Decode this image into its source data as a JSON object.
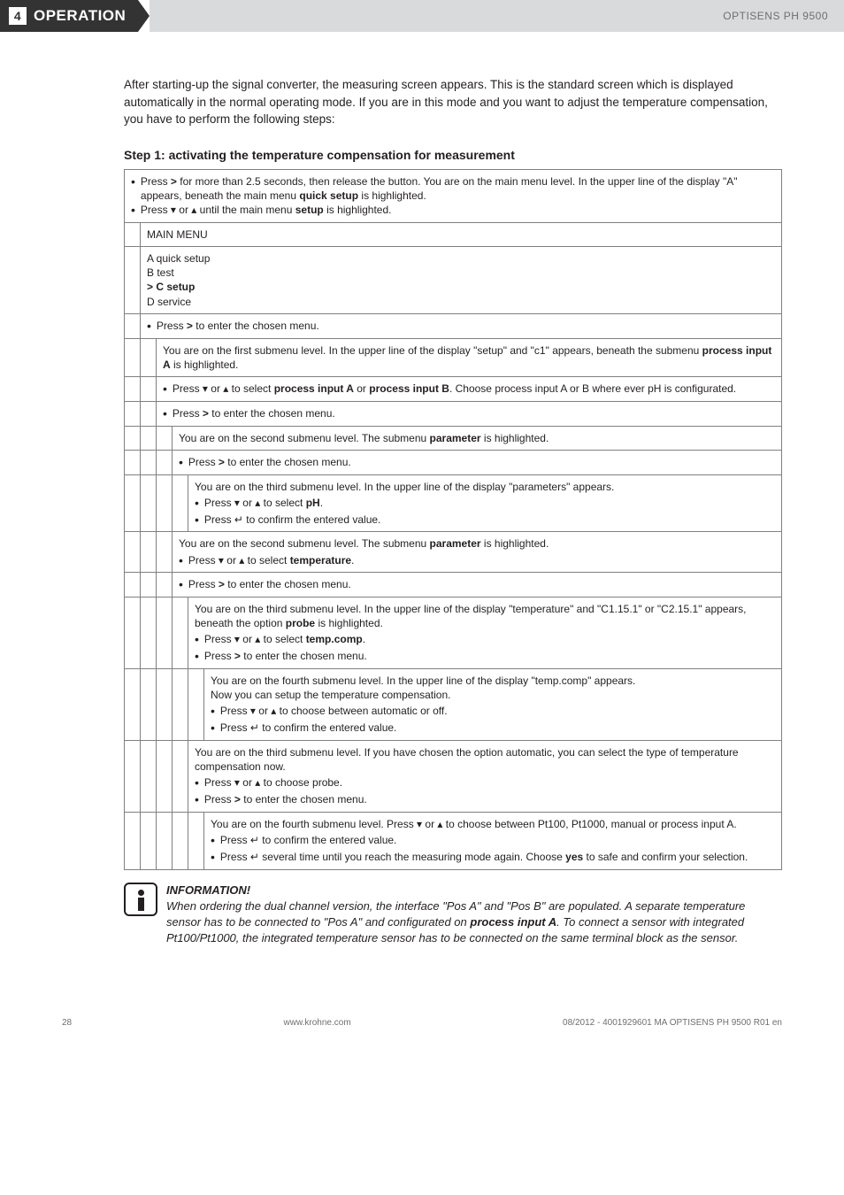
{
  "header": {
    "section_number": "4",
    "section_title": "OPERATION",
    "product": "OPTISENS PH 9500"
  },
  "intro": "After starting-up the signal converter, the measuring screen appears. This is the standard screen which is displayed automatically in the normal operating mode. If you are in this mode and you want to adjust the temperature compensation, you have to perform the following steps:",
  "step_title": "Step 1: activating the temperature compensation for measurement",
  "tree": {
    "root_a": "Press > for more than 2.5 seconds, then release the button. You are on the main menu level. In the upper line of the display \"A\" appears, beneath the main menu quick setup is highlighted.",
    "root_b": "Press ▾ or ▴ until the main menu setup is highlighted.",
    "main_menu_label": "MAIN MENU",
    "main_menu_items": "A quick setup\nB test\n> C setup\nD service",
    "enter_chosen_1": "Press > to enter the chosen menu.",
    "lvl1_note": "You are on the first submenu level. In the upper line of the display \"setup\" and \"c1\" appears, beneath the submenu process input A is highlighted.",
    "lvl1_select": "Press ▾ or ▴ to select process input A or process input B. Choose process input A or B where ever pH is configurated.",
    "enter_chosen_2": "Press > to enter the chosen menu.",
    "lvl2_note": "You are on the second submenu level. The submenu parameter is highlighted.",
    "enter_chosen_3": "Press > to enter the chosen menu.",
    "lvl3_note": "You are on the third submenu level. In the upper line of the display \"parameters\" appears.",
    "lvl3_b1": "Press ▾ or ▴ to select pH.",
    "lvl3_b2": "Press ↵ to confirm the entered value.",
    "lvl2_temp_note": "You are on the second submenu level. The submenu parameter is highlighted.",
    "lvl2_temp_b": "Press ▾ or ▴ to select temperature.",
    "enter_chosen_4": "Press > to enter the chosen menu.",
    "lvl3_temp_note": "You are on the third submenu level. In the upper line of the display \"temperature\" and \"C1.15.1\" or \"C2.15.1\" appears, beneath the option probe is highlighted.",
    "lvl3_temp_b1": "Press ▾ or ▴ to select temp.comp.",
    "lvl3_temp_b2": "Press > to enter the chosen menu.",
    "lvl4_note": "You are on the fourth submenu level. In the upper line of the display \"temp.comp\" appears.\nNow you can setup the temperature compensation.",
    "lvl4_b1": "Press ▾ or ▴ to choose between automatic or off.",
    "lvl4_b2": "Press ↵ to confirm the entered value.",
    "lvl3_auto_note": "You are on the third submenu level. If you have chosen the option automatic, you can select the type of temperature compensation now.",
    "lvl3_auto_b1": "Press ▾ or ▴ to choose probe.",
    "lvl3_auto_b2": "Press > to enter the chosen menu.",
    "lvl4b_note": "You are on the fourth submenu level. Press ▾ or ▴ to choose between Pt100, Pt1000, manual or process input A.",
    "lvl4b_b1": "Press ↵ to confirm the entered value.",
    "lvl4b_b2": "Press ↵ several time until you reach the measuring mode again. Choose yes to safe and confirm your selection."
  },
  "info": {
    "heading": "INFORMATION!",
    "body": "When ordering the dual channel version, the interface \"Pos A\" and \"Pos B\" are populated. A separate temperature sensor has to be connected to \"Pos A\" and configurated on process input A. To connect a sensor with integrated Pt100/Pt1000, the integrated temperature sensor has to be connected on the same terminal block as the sensor."
  },
  "footer": {
    "page": "28",
    "url": "www.krohne.com",
    "doc": "08/2012 - 4001929601 MA OPTISENS PH 9500 R01 en"
  }
}
